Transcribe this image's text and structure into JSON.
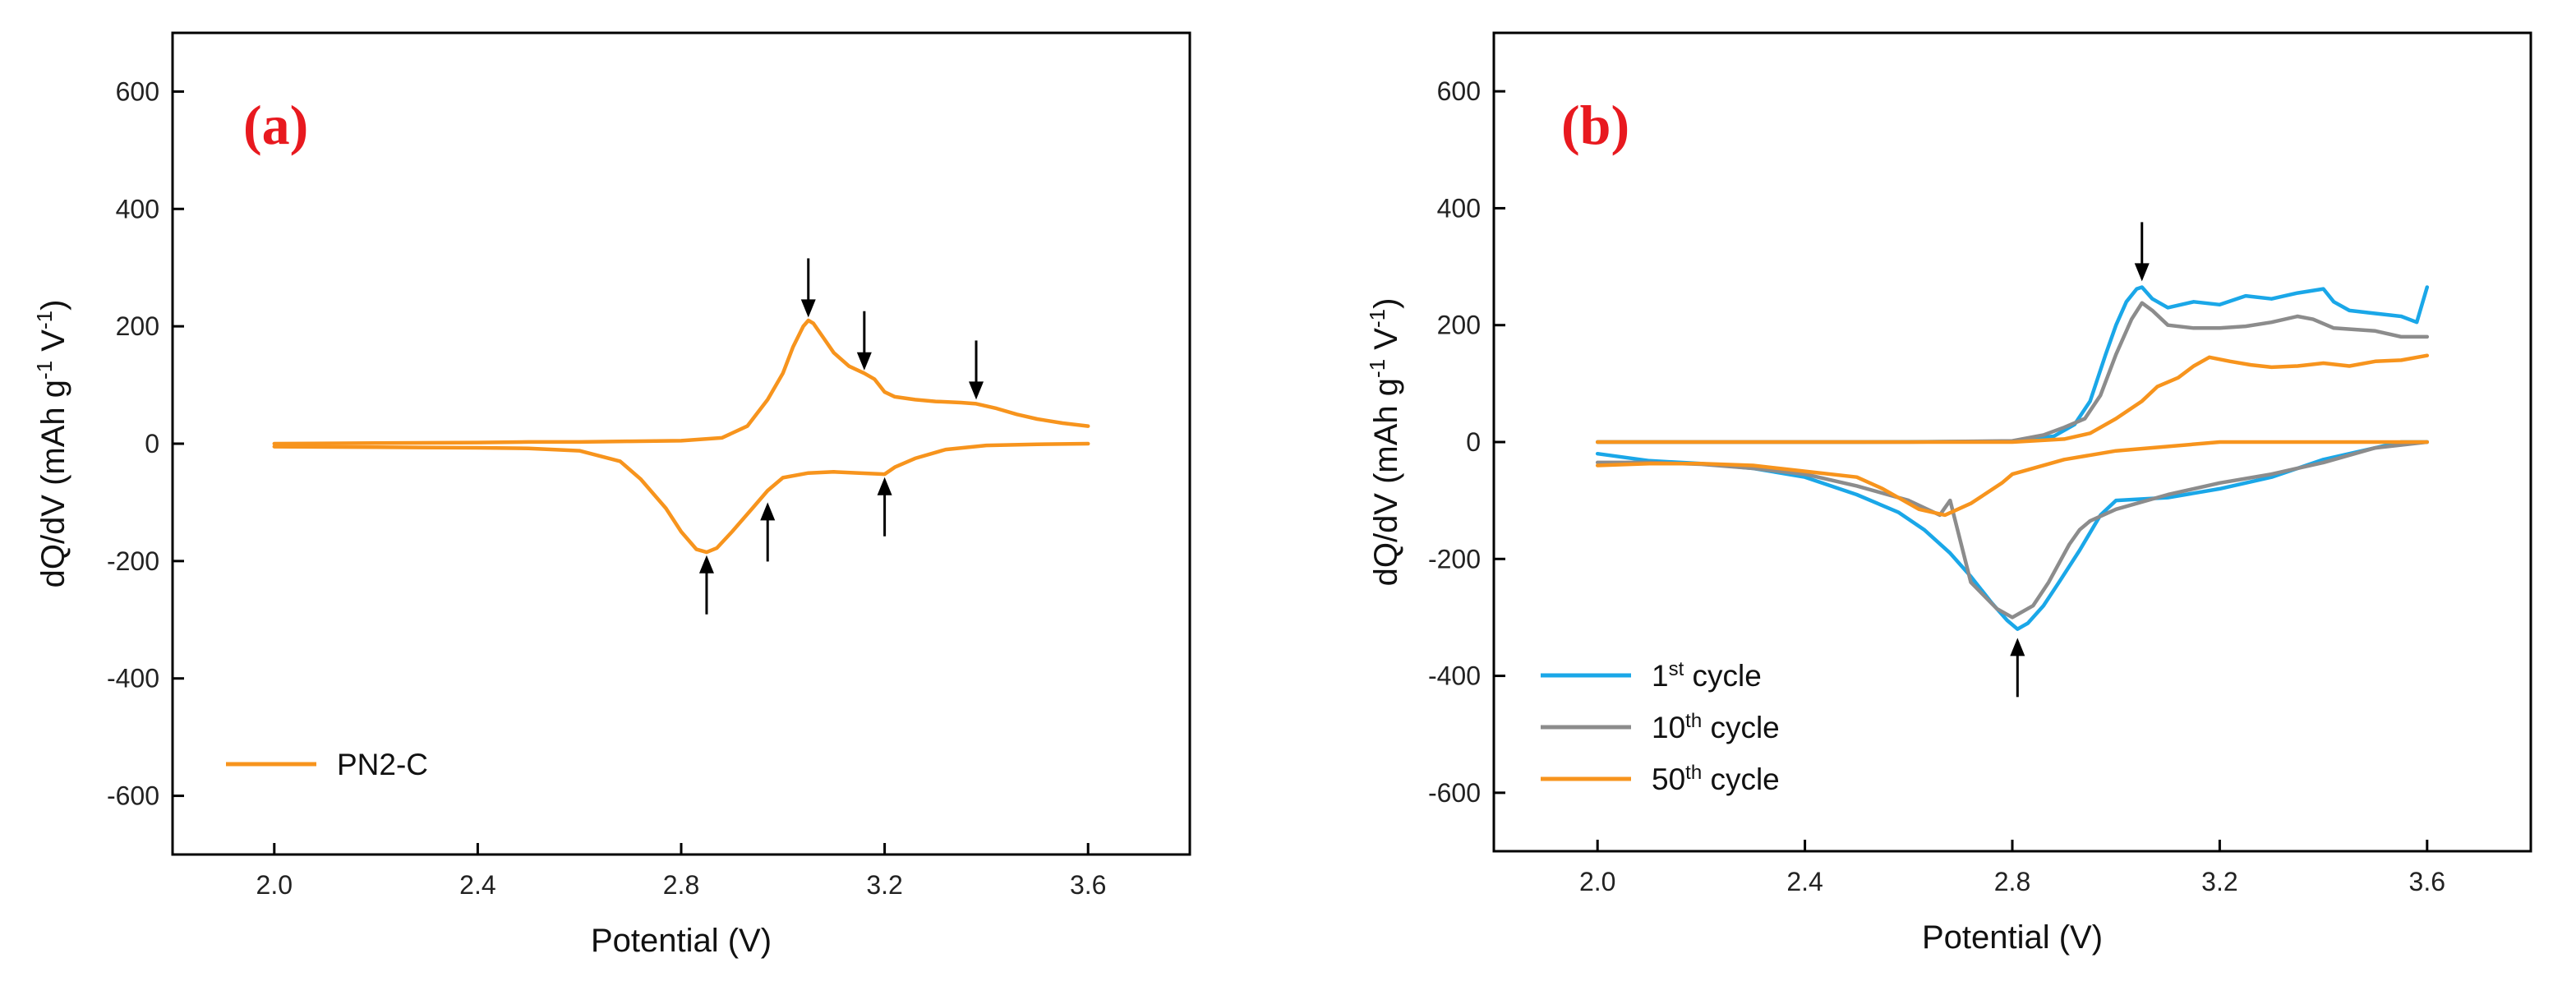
{
  "chart_data": [
    {
      "type": "line",
      "panel_label": "(a)",
      "xlabel": "Potential (V)",
      "ylabel": "dQ/dV (mAh g-1 V-1)",
      "ylabel_parts": {
        "main": "dQ/dV (mAh g",
        "sup1": "-1",
        "mid": " V",
        "sup2": "-1",
        "end": ")"
      },
      "xlim": [
        1.8,
        3.8
      ],
      "ylim": [
        -700,
        700
      ],
      "xticks": [
        2.0,
        2.4,
        2.8,
        3.2,
        3.6
      ],
      "xtick_labels": [
        "2.0",
        "2.4",
        "2.8",
        "3.2",
        "3.6"
      ],
      "yticks": [
        -600,
        -400,
        -200,
        0,
        200,
        400,
        600
      ],
      "ytick_labels": [
        "-600",
        "-400",
        "-200",
        "0",
        "200",
        "400",
        "600"
      ],
      "legend": {
        "location": "lower-left",
        "entries": [
          {
            "pre": "PN2-C",
            "sup": "",
            "post": ""
          }
        ]
      },
      "series": [
        {
          "name": "PN2-C",
          "color": "#f7941d",
          "segments": [
            [
              [
                2.0,
                0
              ],
              [
                2.2,
                1
              ],
              [
                2.4,
                2
              ],
              [
                2.5,
                3
              ],
              [
                2.6,
                3
              ],
              [
                2.7,
                4
              ],
              [
                2.8,
                5
              ],
              [
                2.88,
                10
              ],
              [
                2.93,
                30
              ],
              [
                2.97,
                75
              ],
              [
                3.0,
                120
              ],
              [
                3.02,
                165
              ],
              [
                3.04,
                200
              ],
              [
                3.05,
                210
              ],
              [
                3.06,
                205
              ],
              [
                3.08,
                180
              ],
              [
                3.1,
                155
              ],
              [
                3.13,
                132
              ],
              [
                3.16,
                120
              ],
              [
                3.18,
                110
              ],
              [
                3.2,
                88
              ],
              [
                3.22,
                80
              ],
              [
                3.26,
                75
              ],
              [
                3.3,
                72
              ],
              [
                3.35,
                70
              ],
              [
                3.38,
                68
              ],
              [
                3.42,
                60
              ],
              [
                3.46,
                50
              ],
              [
                3.5,
                42
              ],
              [
                3.55,
                35
              ],
              [
                3.6,
                30
              ]
            ],
            [
              [
                3.6,
                0
              ],
              [
                3.5,
                -1
              ],
              [
                3.4,
                -3
              ],
              [
                3.32,
                -10
              ],
              [
                3.26,
                -25
              ],
              [
                3.22,
                -40
              ],
              [
                3.2,
                -52
              ],
              [
                3.15,
                -50
              ],
              [
                3.1,
                -48
              ],
              [
                3.05,
                -50
              ],
              [
                3.0,
                -58
              ],
              [
                2.97,
                -80
              ],
              [
                2.94,
                -110
              ],
              [
                2.9,
                -150
              ],
              [
                2.87,
                -178
              ],
              [
                2.85,
                -185
              ],
              [
                2.83,
                -180
              ],
              [
                2.8,
                -150
              ],
              [
                2.77,
                -110
              ],
              [
                2.72,
                -60
              ],
              [
                2.68,
                -30
              ],
              [
                2.6,
                -12
              ],
              [
                2.5,
                -8
              ],
              [
                2.4,
                -7
              ],
              [
                2.2,
                -6
              ],
              [
                2.0,
                -5
              ]
            ]
          ]
        }
      ],
      "annotations": [
        {
          "type": "arrow-down",
          "x": 3.05,
          "y_tip": 215
        },
        {
          "type": "arrow-down",
          "x": 3.16,
          "y_tip": 125
        },
        {
          "type": "arrow-down",
          "x": 3.38,
          "y_tip": 75
        },
        {
          "type": "arrow-up",
          "x": 2.85,
          "y_tip": -190
        },
        {
          "type": "arrow-up",
          "x": 2.97,
          "y_tip": -100
        },
        {
          "type": "arrow-up",
          "x": 3.2,
          "y_tip": -57
        }
      ]
    },
    {
      "type": "line",
      "panel_label": "(b)",
      "xlabel": "Potential (V)",
      "ylabel": "dQ/dV (mAh g-1 V-1)",
      "ylabel_parts": {
        "main": "dQ/dV (mAh g",
        "sup1": "-1",
        "mid": " V",
        "sup2": "-1",
        "end": ")"
      },
      "xlim": [
        1.8,
        3.8
      ],
      "ylim": [
        -700,
        700
      ],
      "xticks": [
        2.0,
        2.4,
        2.8,
        3.2,
        3.6
      ],
      "xtick_labels": [
        "2.0",
        "2.4",
        "2.8",
        "3.2",
        "3.6"
      ],
      "yticks": [
        -600,
        -400,
        -200,
        0,
        200,
        400,
        600
      ],
      "ytick_labels": [
        "-600",
        "-400",
        "-200",
        "0",
        "200",
        "400",
        "600"
      ],
      "legend": {
        "location": "lower-left",
        "entries": [
          {
            "pre": "1",
            "sup": "st",
            "post": " cycle"
          },
          {
            "pre": "10",
            "sup": "th",
            "post": " cycle"
          },
          {
            "pre": "50",
            "sup": "th",
            "post": " cycle"
          }
        ]
      },
      "series": [
        {
          "name": "1st cycle",
          "color": "#1aa7e8",
          "segments": [
            [
              [
                2.0,
                0
              ],
              [
                2.5,
                0
              ],
              [
                2.8,
                1
              ],
              [
                2.88,
                10
              ],
              [
                2.92,
                30
              ],
              [
                2.95,
                70
              ],
              [
                2.98,
                150
              ],
              [
                3.0,
                200
              ],
              [
                3.02,
                240
              ],
              [
                3.04,
                262
              ],
              [
                3.05,
                265
              ],
              [
                3.07,
                245
              ],
              [
                3.1,
                230
              ],
              [
                3.15,
                240
              ],
              [
                3.2,
                235
              ],
              [
                3.25,
                250
              ],
              [
                3.3,
                245
              ],
              [
                3.35,
                255
              ],
              [
                3.4,
                262
              ],
              [
                3.42,
                240
              ],
              [
                3.45,
                225
              ],
              [
                3.5,
                220
              ],
              [
                3.55,
                215
              ],
              [
                3.58,
                205
              ],
              [
                3.6,
                265
              ]
            ],
            [
              [
                3.6,
                0
              ],
              [
                3.55,
                0
              ],
              [
                3.5,
                -10
              ],
              [
                3.4,
                -30
              ],
              [
                3.3,
                -60
              ],
              [
                3.2,
                -80
              ],
              [
                3.1,
                -95
              ],
              [
                3.0,
                -100
              ],
              [
                2.97,
                -125
              ],
              [
                2.93,
                -185
              ],
              [
                2.89,
                -240
              ],
              [
                2.86,
                -280
              ],
              [
                2.83,
                -310
              ],
              [
                2.81,
                -320
              ],
              [
                2.79,
                -305
              ],
              [
                2.76,
                -275
              ],
              [
                2.72,
                -230
              ],
              [
                2.68,
                -190
              ],
              [
                2.63,
                -150
              ],
              [
                2.58,
                -120
              ],
              [
                2.5,
                -90
              ],
              [
                2.4,
                -60
              ],
              [
                2.3,
                -45
              ],
              [
                2.2,
                -37
              ],
              [
                2.1,
                -32
              ],
              [
                2.0,
                -20
              ]
            ]
          ]
        },
        {
          "name": "10th cycle",
          "color": "#8c8c8c",
          "segments": [
            [
              [
                2.0,
                0
              ],
              [
                2.6,
                0
              ],
              [
                2.8,
                2
              ],
              [
                2.86,
                12
              ],
              [
                2.9,
                25
              ],
              [
                2.94,
                40
              ],
              [
                2.97,
                80
              ],
              [
                3.0,
                150
              ],
              [
                3.03,
                210
              ],
              [
                3.05,
                238
              ],
              [
                3.07,
                225
              ],
              [
                3.1,
                200
              ],
              [
                3.15,
                195
              ],
              [
                3.2,
                195
              ],
              [
                3.25,
                198
              ],
              [
                3.3,
                205
              ],
              [
                3.35,
                215
              ],
              [
                3.38,
                210
              ],
              [
                3.42,
                195
              ],
              [
                3.5,
                190
              ],
              [
                3.55,
                180
              ],
              [
                3.6,
                180
              ]
            ],
            [
              [
                3.6,
                0
              ],
              [
                3.5,
                -10
              ],
              [
                3.4,
                -35
              ],
              [
                3.3,
                -55
              ],
              [
                3.2,
                -70
              ],
              [
                3.1,
                -90
              ],
              [
                3.0,
                -115
              ],
              [
                2.95,
                -135
              ],
              [
                2.93,
                -150
              ],
              [
                2.91,
                -175
              ],
              [
                2.87,
                -240
              ],
              [
                2.84,
                -280
              ],
              [
                2.8,
                -300
              ],
              [
                2.77,
                -285
              ],
              [
                2.72,
                -240
              ],
              [
                2.68,
                -100
              ],
              [
                2.66,
                -125
              ],
              [
                2.6,
                -100
              ],
              [
                2.5,
                -75
              ],
              [
                2.4,
                -55
              ],
              [
                2.3,
                -45
              ],
              [
                2.2,
                -38
              ],
              [
                2.1,
                -35
              ],
              [
                2.0,
                -35
              ]
            ]
          ]
        },
        {
          "name": "50th cycle",
          "color": "#f7941d",
          "segments": [
            [
              [
                2.0,
                0
              ],
              [
                2.8,
                0
              ],
              [
                2.9,
                5
              ],
              [
                2.95,
                15
              ],
              [
                3.0,
                40
              ],
              [
                3.05,
                70
              ],
              [
                3.08,
                95
              ],
              [
                3.12,
                110
              ],
              [
                3.15,
                130
              ],
              [
                3.18,
                145
              ],
              [
                3.22,
                138
              ],
              [
                3.26,
                132
              ],
              [
                3.3,
                128
              ],
              [
                3.35,
                130
              ],
              [
                3.4,
                135
              ],
              [
                3.45,
                130
              ],
              [
                3.5,
                138
              ],
              [
                3.55,
                140
              ],
              [
                3.6,
                148
              ]
            ],
            [
              [
                3.6,
                0
              ],
              [
                3.4,
                0
              ],
              [
                3.2,
                0
              ],
              [
                3.0,
                -15
              ],
              [
                2.9,
                -30
              ],
              [
                2.82,
                -50
              ],
              [
                2.8,
                -55
              ],
              [
                2.78,
                -70
              ],
              [
                2.72,
                -105
              ],
              [
                2.67,
                -125
              ],
              [
                2.62,
                -115
              ],
              [
                2.55,
                -80
              ],
              [
                2.5,
                -60
              ],
              [
                2.4,
                -50
              ],
              [
                2.3,
                -40
              ],
              [
                2.2,
                -37
              ],
              [
                2.1,
                -37
              ],
              [
                2.0,
                -40
              ]
            ]
          ]
        }
      ],
      "annotations": [
        {
          "type": "arrow-down",
          "x": 3.05,
          "y_tip": 275
        },
        {
          "type": "arrow-up",
          "x": 2.81,
          "y_tip": -335
        }
      ]
    }
  ]
}
